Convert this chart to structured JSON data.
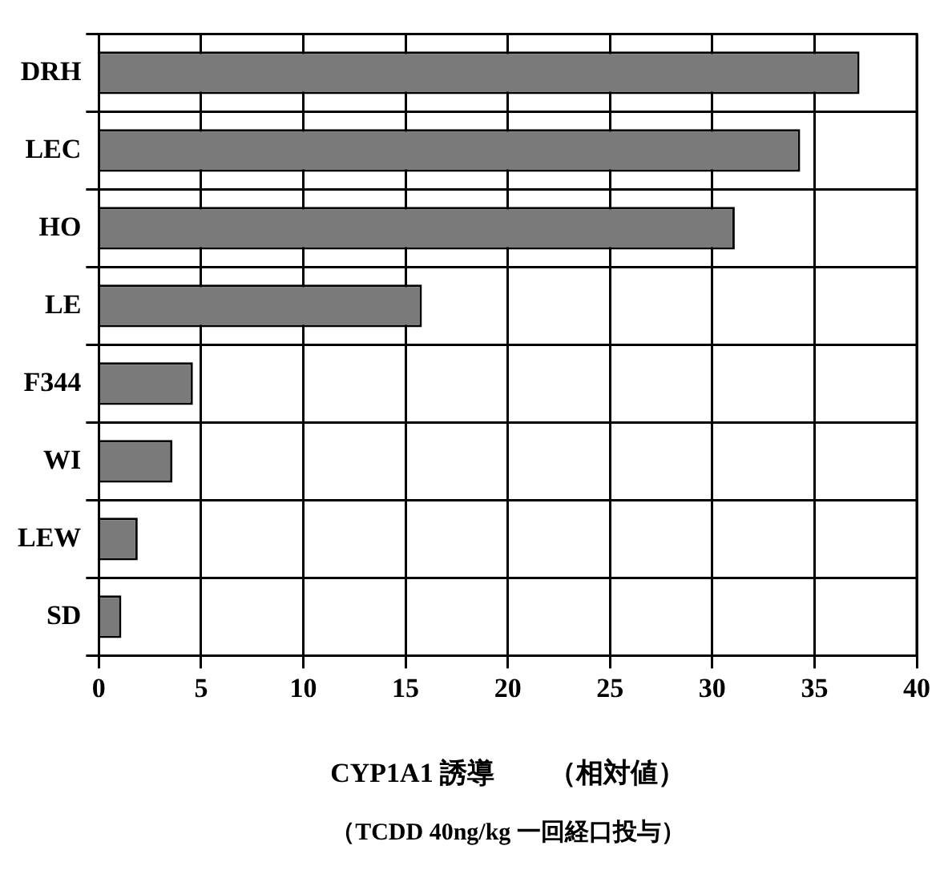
{
  "chart_data": {
    "type": "bar",
    "orientation": "horizontal",
    "categories": [
      "DRH",
      "LEC",
      "HO",
      "LE",
      "F344",
      "WI",
      "LEW",
      "SD"
    ],
    "values": [
      37.2,
      34.3,
      31.1,
      15.8,
      4.6,
      3.6,
      1.9,
      1.1
    ],
    "color": "#7a7a7a",
    "xlim": [
      0,
      40
    ],
    "xticks": [
      0,
      5,
      10,
      15,
      20,
      25,
      30,
      35,
      40
    ],
    "grid": true,
    "xlabel": "CYP1A1 誘導　　（相対値）",
    "annotations": [
      "（TCDD 40ng/kg 一回経口投与）"
    ]
  }
}
